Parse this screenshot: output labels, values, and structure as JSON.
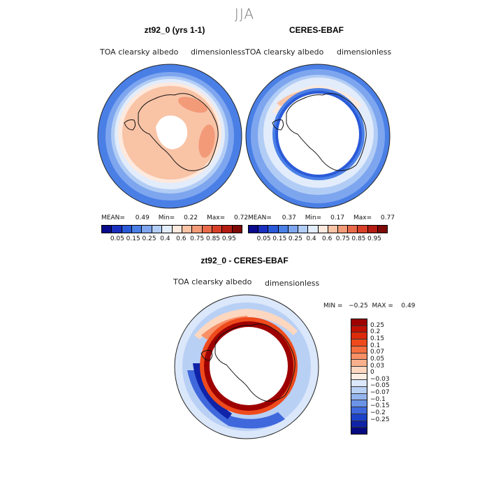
{
  "figure": {
    "suptitle": "JJA"
  },
  "panels": {
    "model": {
      "title": "zt92_0 (yrs 1-1)",
      "left_label": "TOA clearsky albedo",
      "right_label": "dimensionless",
      "mean_label": "MEAN=",
      "mean": "0.49",
      "min_label": "Min=",
      "min": "0.22",
      "max_label": "Max=",
      "max": "0.72"
    },
    "obs": {
      "title": "CERES-EBAF",
      "left_label": "TOA clearsky albedo",
      "right_label": "dimensionless",
      "mean_label": "MEAN=",
      "mean": "0.37",
      "min_label": "Min=",
      "min": "0.17",
      "max_label": "Max=",
      "max": "0.77"
    },
    "diff": {
      "title": "zt92_0 - CERES-EBAF",
      "left_label": "TOA clearsky albedo",
      "right_label": "dimensionless",
      "minmax_text": "MIN =   −0.25  MAX =    0.49"
    }
  },
  "chart_data": [
    {
      "type": "heatmap",
      "title": "zt92_0 (yrs 1-1)",
      "projection": "south polar stereographic",
      "colorbar": {
        "levels": [
          "0.05",
          "0.15",
          "0.25",
          "0.4",
          "0.6",
          "0.75",
          "0.85",
          "0.95"
        ],
        "colors": [
          "#0a0a8c",
          "#1a2fbf",
          "#2a5ad8",
          "#4a7fe6",
          "#7ea6ef",
          "#b2cdf5",
          "#e2ecfb",
          "#fde9dd",
          "#f9c3a6",
          "#f39a78",
          "#e96b4c",
          "#d8402a",
          "#b51d13",
          "#7d0a06"
        ]
      },
      "stats": {
        "mean": 0.49,
        "min": 0.22,
        "max": 0.72
      }
    },
    {
      "type": "heatmap",
      "title": "CERES-EBAF",
      "projection": "south polar stereographic",
      "colorbar": {
        "levels": [
          "0.05",
          "0.15",
          "0.25",
          "0.4",
          "0.6",
          "0.75",
          "0.85",
          "0.95"
        ],
        "colors": [
          "#0a0a8c",
          "#1a2fbf",
          "#2a5ad8",
          "#4a7fe6",
          "#7ea6ef",
          "#b2cdf5",
          "#e2ecfb",
          "#fde9dd",
          "#f9c3a6",
          "#f39a78",
          "#e96b4c",
          "#d8402a",
          "#b51d13",
          "#7d0a06"
        ]
      },
      "stats": {
        "mean": 0.37,
        "min": 0.17,
        "max": 0.77
      }
    },
    {
      "type": "heatmap",
      "title": "zt92_0 - CERES-EBAF",
      "projection": "south polar stereographic",
      "colorbar": {
        "levels": [
          "0.25",
          "0.2",
          "0.15",
          "0.1",
          "0.07",
          "0.05",
          "0.03",
          "0",
          "−0.03",
          "−0.05",
          "−0.07",
          "−0.1",
          "−0.15",
          "−0.2",
          "−0.25"
        ],
        "colors": [
          "#9e0000",
          "#c20f00",
          "#dc2a0a",
          "#ee4a1c",
          "#f56e3f",
          "#f88f65",
          "#fab08c",
          "#fdd7c0",
          "#fdeee3",
          "#dbe7fa",
          "#b9d0f5",
          "#94b5ee",
          "#6b93e6",
          "#3f68dc",
          "#1c42c8",
          "#0f23a8",
          "#060a80"
        ]
      },
      "stats": {
        "min": -0.25,
        "max": 0.49
      }
    }
  ]
}
